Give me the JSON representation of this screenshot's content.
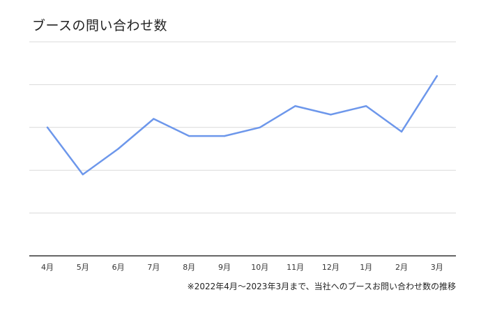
{
  "chart_data": {
    "type": "line",
    "title": "ブースの問い合わせ数",
    "categories": [
      "4月",
      "5月",
      "6月",
      "7月",
      "8月",
      "9月",
      "10月",
      "11月",
      "12月",
      "1月",
      "2月",
      "3月"
    ],
    "series": [
      {
        "values": [
          2.0,
          0.9,
          1.5,
          2.2,
          1.8,
          1.8,
          2.0,
          2.5,
          2.3,
          2.5,
          1.9,
          3.2
        ]
      }
    ],
    "ylim": [
      -1,
      4
    ],
    "y_gridlines": [
      0,
      1,
      2,
      3,
      4
    ],
    "y_tick_labels_shown": false,
    "grid": true,
    "line_color": "#6d97eb",
    "grid_color": "#d9d9d9",
    "axis_color": "#333333",
    "note": "※2022年4月～2023年3月まで、当社へのブースお問い合わせ数の推移"
  }
}
